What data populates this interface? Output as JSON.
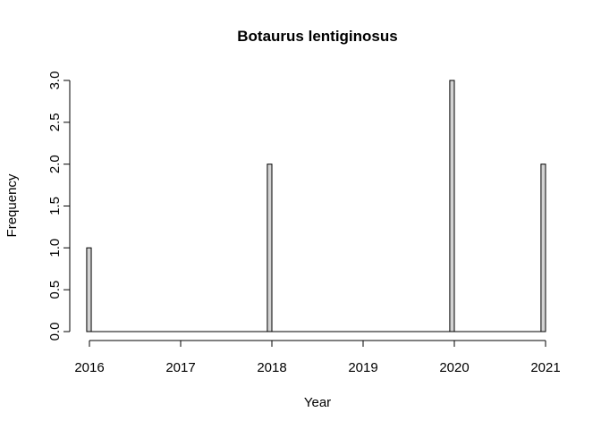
{
  "chart_data": {
    "type": "bar",
    "title": "Botaurus lentiginosus",
    "xlabel": "Year",
    "ylabel": "Frequency",
    "x_ticks": [
      "2016",
      "2017",
      "2018",
      "2019",
      "2020",
      "2021"
    ],
    "y_ticks": [
      "0.0",
      "0.5",
      "1.0",
      "1.5",
      "2.0",
      "2.5",
      "3.0"
    ],
    "xlim": [
      2016,
      2021
    ],
    "ylim": [
      0,
      3
    ],
    "bin_width": 0.05,
    "bars": [
      {
        "x_start": 2015.97,
        "value": 1
      },
      {
        "x_start": 2017.95,
        "value": 2
      },
      {
        "x_start": 2019.95,
        "value": 3
      },
      {
        "x_start": 2020.95,
        "value": 2
      }
    ],
    "baseline_from": 2016.02,
    "baseline_to": 2020.95,
    "bar_fill": "#d3d3d3",
    "bar_stroke": "#000000",
    "grid": false,
    "legend": "none"
  }
}
